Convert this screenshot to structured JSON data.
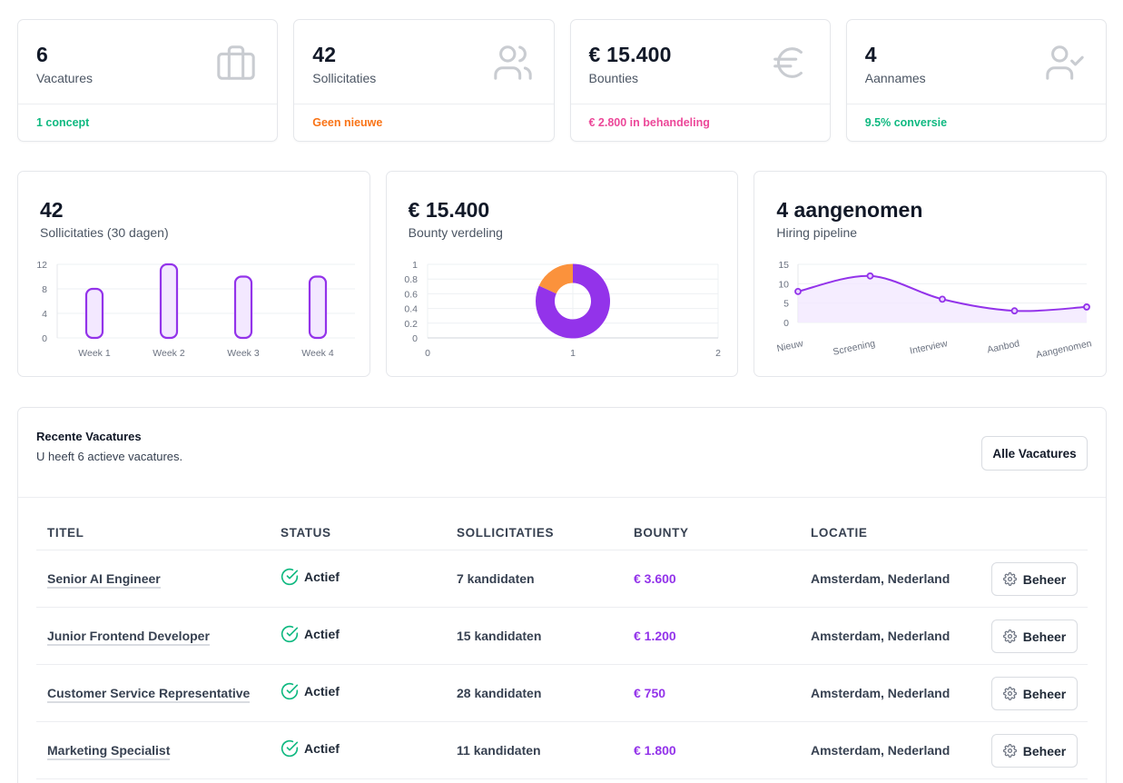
{
  "stats": [
    {
      "value": "6",
      "label": "Vacatures",
      "footer": "1 concept",
      "footer_color": "#10b981",
      "icon": "briefcase-icon"
    },
    {
      "value": "42",
      "label": "Sollicitaties",
      "footer": "Geen nieuwe",
      "footer_color": "#f97316",
      "icon": "users-icon"
    },
    {
      "value": "€ 15.400",
      "label": "Bounties",
      "footer": "€ 2.800 in behandeling",
      "footer_color": "#ec4899",
      "icon": "euro-icon"
    },
    {
      "value": "4",
      "label": "Aannames",
      "footer": "9.5% conversie",
      "footer_color": "#10b981",
      "icon": "user-check-icon"
    }
  ],
  "charts": [
    {
      "title": "42",
      "subtitle": "Sollicitaties (30 dagen)"
    },
    {
      "title": "€ 15.400",
      "subtitle": "Bounty verdeling"
    },
    {
      "title": "4 aangenomen",
      "subtitle": "Hiring pipeline"
    }
  ],
  "chart_data": [
    {
      "type": "bar",
      "categories": [
        "Week 1",
        "Week 2",
        "Week 3",
        "Week 4"
      ],
      "values": [
        8,
        12,
        10,
        10
      ],
      "yticks": [
        0,
        4,
        8,
        12
      ],
      "ylim": [
        0,
        12
      ],
      "color": "#9333ea",
      "grid": true
    },
    {
      "type": "pie",
      "slices": [
        {
          "value": 12600,
          "color": "#9333ea"
        },
        {
          "value": 2800,
          "color": "#fb923c"
        }
      ],
      "xticks": [
        0,
        1,
        2
      ],
      "yticks": [
        0,
        0.2,
        0.4,
        0.6,
        0.8,
        1
      ],
      "ylim": [
        0,
        1
      ],
      "xlim": [
        0,
        2
      ],
      "grid": true
    },
    {
      "type": "area",
      "categories": [
        "Nieuw",
        "Screening",
        "Interview",
        "Aanbod",
        "Aangenomen"
      ],
      "values": [
        8,
        12,
        6,
        3,
        4
      ],
      "yticks": [
        0,
        5,
        10,
        15
      ],
      "ylim": [
        0,
        15
      ],
      "color": "#9333ea",
      "grid": true
    }
  ],
  "jobs_panel": {
    "title": "Recente Vacatures",
    "description": "U heeft 6 actieve vacatures.",
    "all_button": "Alle Vacatures",
    "columns": [
      "TITEL",
      "STATUS",
      "SOLLICITATIES",
      "BOUNTY",
      "LOCATIE"
    ],
    "manage_label": "Beheer",
    "rows": [
      {
        "title": "Senior AI Engineer",
        "status": "Actief",
        "applicants": "7 kandidaten",
        "bounty": "€ 3.600",
        "location": "Amsterdam, Nederland"
      },
      {
        "title": "Junior Frontend Developer",
        "status": "Actief",
        "applicants": "15 kandidaten",
        "bounty": "€ 1.200",
        "location": "Amsterdam, Nederland"
      },
      {
        "title": "Customer Service Representative",
        "status": "Actief",
        "applicants": "28 kandidaten",
        "bounty": "€ 750",
        "location": "Amsterdam, Nederland"
      },
      {
        "title": "Marketing Specialist",
        "status": "Actief",
        "applicants": "11 kandidaten",
        "bounty": "€ 1.800",
        "location": "Amsterdam, Nederland"
      }
    ]
  }
}
